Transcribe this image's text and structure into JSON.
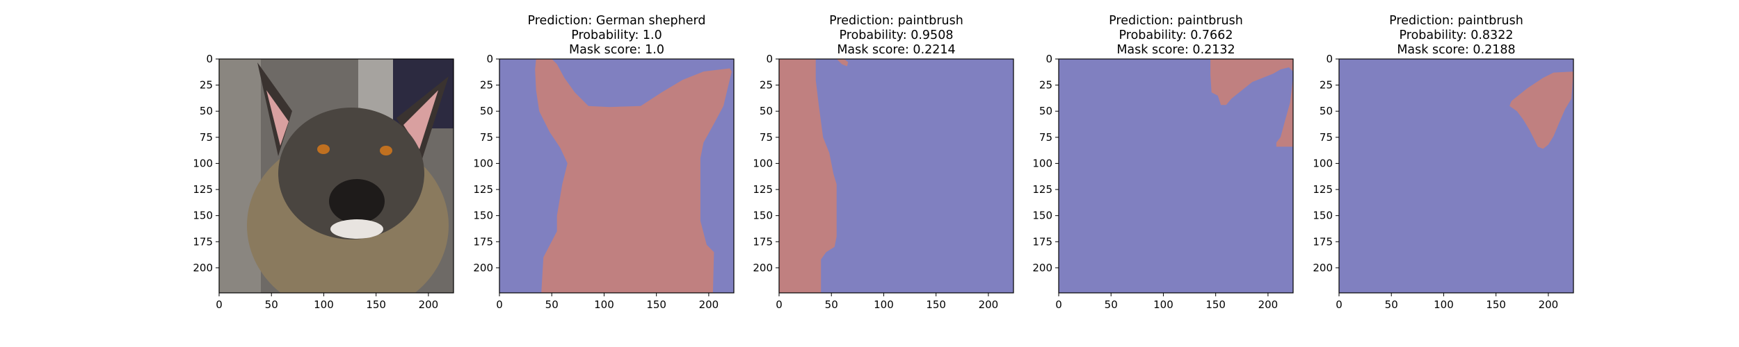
{
  "chart_data": [
    {
      "type": "heatmap",
      "title_lines": [],
      "content": "photo of a dog",
      "xlim": [
        0,
        224
      ],
      "ylim": [
        224,
        0
      ],
      "xticks": [
        0,
        50,
        100,
        150,
        200
      ],
      "yticks": [
        0,
        25,
        50,
        75,
        100,
        125,
        150,
        175,
        200
      ]
    },
    {
      "type": "heatmap",
      "title_lines": [
        "Prediction: German shepherd",
        "Probability: 1.0",
        "Mask score: 1.0"
      ],
      "prediction": "German shepherd",
      "probability": 1.0,
      "mask_score": 1.0,
      "xlim": [
        0,
        224
      ],
      "ylim": [
        224,
        0
      ],
      "xticks": [
        0,
        50,
        100,
        150,
        200
      ],
      "yticks": [
        0,
        25,
        50,
        75,
        100,
        125,
        150,
        175,
        200
      ],
      "mask_outlines": [
        [
          [
            35,
            0
          ],
          [
            50,
            0
          ],
          [
            55,
            5
          ],
          [
            62,
            18
          ],
          [
            72,
            32
          ],
          [
            85,
            45
          ],
          [
            105,
            46
          ],
          [
            135,
            45
          ],
          [
            155,
            32
          ],
          [
            175,
            20
          ],
          [
            195,
            12
          ],
          [
            220,
            9
          ],
          [
            222,
            12
          ],
          [
            220,
            20
          ],
          [
            214,
            45
          ],
          [
            205,
            62
          ],
          [
            195,
            80
          ],
          [
            192,
            95
          ],
          [
            192,
            155
          ],
          [
            198,
            178
          ],
          [
            205,
            185
          ],
          [
            204,
            224
          ],
          [
            40,
            224
          ],
          [
            42,
            190
          ],
          [
            55,
            165
          ],
          [
            55,
            150
          ],
          [
            60,
            120
          ],
          [
            65,
            100
          ],
          [
            58,
            85
          ],
          [
            48,
            70
          ],
          [
            38,
            50
          ],
          [
            35,
            30
          ],
          [
            34,
            10
          ]
        ]
      ]
    },
    {
      "type": "heatmap",
      "title_lines": [
        "Prediction: paintbrush",
        "Probability: 0.9508",
        "Mask score: 0.2214"
      ],
      "prediction": "paintbrush",
      "probability": 0.9508,
      "mask_score": 0.2214,
      "xlim": [
        0,
        224
      ],
      "ylim": [
        224,
        0
      ],
      "xticks": [
        0,
        50,
        100,
        150,
        200
      ],
      "yticks": [
        0,
        25,
        50,
        75,
        100,
        125,
        150,
        175,
        200
      ],
      "mask_outlines": [
        [
          [
            0,
            0
          ],
          [
            35,
            0
          ],
          [
            35,
            20
          ],
          [
            38,
            45
          ],
          [
            42,
            75
          ],
          [
            48,
            90
          ],
          [
            52,
            110
          ],
          [
            55,
            120
          ],
          [
            55,
            150
          ],
          [
            55,
            170
          ],
          [
            53,
            180
          ],
          [
            45,
            185
          ],
          [
            40,
            192
          ],
          [
            40,
            224
          ],
          [
            0,
            224
          ]
        ],
        [
          [
            55,
            0
          ],
          [
            62,
            0
          ],
          [
            66,
            3
          ],
          [
            65,
            7
          ],
          [
            60,
            5
          ]
        ]
      ]
    },
    {
      "type": "heatmap",
      "title_lines": [
        "Prediction: paintbrush",
        "Probability: 0.7662",
        "Mask score: 0.2132"
      ],
      "prediction": "paintbrush",
      "probability": 0.7662,
      "mask_score": 0.2132,
      "xlim": [
        0,
        224
      ],
      "ylim": [
        224,
        0
      ],
      "xticks": [
        0,
        50,
        100,
        150,
        200
      ],
      "yticks": [
        0,
        25,
        50,
        75,
        100,
        125,
        150,
        175,
        200
      ],
      "mask_outlines": [
        [
          [
            145,
            0
          ],
          [
            224,
            0
          ],
          [
            224,
            12
          ],
          [
            220,
            8
          ],
          [
            212,
            10
          ],
          [
            205,
            14
          ],
          [
            195,
            18
          ],
          [
            185,
            22
          ],
          [
            175,
            30
          ],
          [
            165,
            38
          ],
          [
            160,
            44
          ],
          [
            155,
            44
          ],
          [
            152,
            35
          ],
          [
            146,
            32
          ],
          [
            145,
            15
          ]
        ],
        [
          [
            224,
            18
          ],
          [
            221,
            42
          ],
          [
            216,
            60
          ],
          [
            212,
            75
          ],
          [
            208,
            80
          ],
          [
            208,
            84
          ],
          [
            224,
            84
          ]
        ]
      ]
    },
    {
      "type": "heatmap",
      "title_lines": [
        "Prediction: paintbrush",
        "Probability: 0.8322",
        "Mask score: 0.2188"
      ],
      "prediction": "paintbrush",
      "probability": 0.8322,
      "mask_score": 0.2188,
      "xlim": [
        0,
        224
      ],
      "ylim": [
        224,
        0
      ],
      "xticks": [
        0,
        50,
        100,
        150,
        200
      ],
      "yticks": [
        0,
        25,
        50,
        75,
        100,
        125,
        150,
        175,
        200
      ],
      "mask_outlines": [
        [
          [
            165,
            40
          ],
          [
            180,
            28
          ],
          [
            195,
            18
          ],
          [
            205,
            13
          ],
          [
            224,
            12
          ],
          [
            222,
            38
          ],
          [
            216,
            48
          ],
          [
            210,
            62
          ],
          [
            205,
            74
          ],
          [
            200,
            82
          ],
          [
            195,
            86
          ],
          [
            190,
            84
          ],
          [
            187,
            78
          ],
          [
            182,
            68
          ],
          [
            176,
            58
          ],
          [
            170,
            50
          ],
          [
            163,
            45
          ],
          [
            164,
            42
          ]
        ]
      ]
    }
  ],
  "colors": {
    "background": "#8080c0",
    "mask": "#c08080",
    "photo": "#5a5652"
  }
}
